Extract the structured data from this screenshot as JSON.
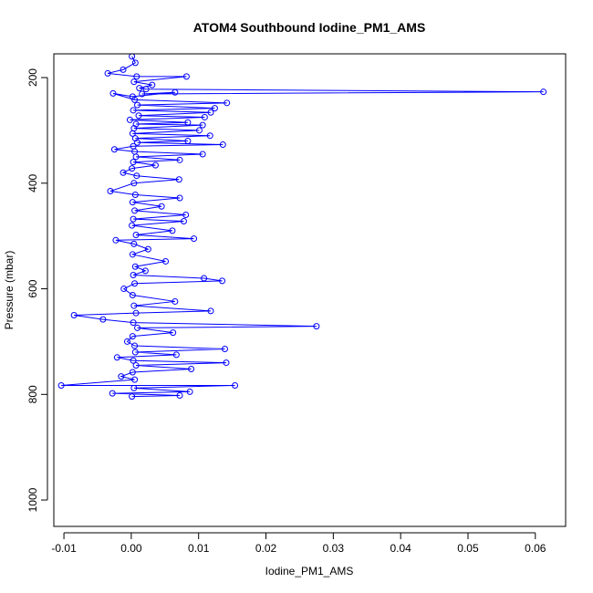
{
  "chart_data": {
    "type": "line",
    "title": "ATOM4 Southbound Iodine_PM1_AMS",
    "xlabel": "Iodine_PM1_AMS",
    "ylabel": "Pressure (mbar)",
    "xlim": [
      -0.0115,
      0.0645
    ],
    "ylim": [
      1050,
      155
    ],
    "y_reversed": true,
    "xticks": [
      -0.01,
      0.0,
      0.01,
      0.02,
      0.03,
      0.04,
      0.05,
      0.06
    ],
    "xtick_labels": [
      "-0.01",
      "0.00",
      "0.01",
      "0.02",
      "0.03",
      "0.04",
      "0.05",
      "0.06"
    ],
    "yticks": [
      200,
      400,
      600,
      800,
      1000
    ],
    "ytick_labels": [
      "200",
      "400",
      "600",
      "800",
      "1000"
    ],
    "grid": false,
    "legend": "none",
    "marker": "open-circle",
    "series_color": "#0000ff",
    "series": [
      {
        "values": [
          {
            "x": 0.0001,
            "y": 160
          },
          {
            "x": 0.0006,
            "y": 172
          },
          {
            "x": -0.0012,
            "y": 185
          },
          {
            "x": -0.0035,
            "y": 192
          },
          {
            "x": 0.0008,
            "y": 198
          },
          {
            "x": 0.0082,
            "y": 198
          },
          {
            "x": 0.0004,
            "y": 208
          },
          {
            "x": 0.0031,
            "y": 214
          },
          {
            "x": 0.0012,
            "y": 220
          },
          {
            "x": 0.0022,
            "y": 222
          },
          {
            "x": 0.0612,
            "y": 227
          },
          {
            "x": 0.0016,
            "y": 231
          },
          {
            "x": 0.0065,
            "y": 228
          },
          {
            "x": 0.0002,
            "y": 236
          },
          {
            "x": -0.0027,
            "y": 230
          },
          {
            "x": 0.0005,
            "y": 242
          },
          {
            "x": 0.0142,
            "y": 248
          },
          {
            "x": 0.0009,
            "y": 252
          },
          {
            "x": 0.0124,
            "y": 258
          },
          {
            "x": 0.0003,
            "y": 262
          },
          {
            "x": 0.0118,
            "y": 266
          },
          {
            "x": 0.0011,
            "y": 272
          },
          {
            "x": 0.0109,
            "y": 275
          },
          {
            "x": -0.0002,
            "y": 280
          },
          {
            "x": 0.0084,
            "y": 285
          },
          {
            "x": 0.0007,
            "y": 288
          },
          {
            "x": 0.0106,
            "y": 290
          },
          {
            "x": 0.0004,
            "y": 296
          },
          {
            "x": 0.0101,
            "y": 300
          },
          {
            "x": 0.0002,
            "y": 306
          },
          {
            "x": 0.0117,
            "y": 310
          },
          {
            "x": 0.0006,
            "y": 315
          },
          {
            "x": 0.0084,
            "y": 320
          },
          {
            "x": 0.0009,
            "y": 323
          },
          {
            "x": 0.0136,
            "y": 327
          },
          {
            "x": 0.0003,
            "y": 330
          },
          {
            "x": -0.0025,
            "y": 336
          },
          {
            "x": 0.0005,
            "y": 340
          },
          {
            "x": 0.0106,
            "y": 345
          },
          {
            "x": 0.0007,
            "y": 350
          },
          {
            "x": 0.0072,
            "y": 356
          },
          {
            "x": 0.0003,
            "y": 360
          },
          {
            "x": 0.0036,
            "y": 366
          },
          {
            "x": 0.0001,
            "y": 372
          },
          {
            "x": -0.0012,
            "y": 380
          },
          {
            "x": 0.0008,
            "y": 386
          },
          {
            "x": 0.0071,
            "y": 393
          },
          {
            "x": 0.0004,
            "y": 400
          },
          {
            "x": -0.0031,
            "y": 415
          },
          {
            "x": 0.0006,
            "y": 422
          },
          {
            "x": 0.0072,
            "y": 428
          },
          {
            "x": 0.0002,
            "y": 436
          },
          {
            "x": 0.0045,
            "y": 444
          },
          {
            "x": 0.0005,
            "y": 452
          },
          {
            "x": 0.0081,
            "y": 460
          },
          {
            "x": 0.0003,
            "y": 468
          },
          {
            "x": 0.0078,
            "y": 472
          },
          {
            "x": 0.0001,
            "y": 480
          },
          {
            "x": 0.0061,
            "y": 490
          },
          {
            "x": 0.0007,
            "y": 498
          },
          {
            "x": 0.0093,
            "y": 505
          },
          {
            "x": -0.0023,
            "y": 508
          },
          {
            "x": 0.0004,
            "y": 515
          },
          {
            "x": 0.0025,
            "y": 525
          },
          {
            "x": 0.0002,
            "y": 535
          },
          {
            "x": 0.0051,
            "y": 548
          },
          {
            "x": 0.0006,
            "y": 558
          },
          {
            "x": 0.0021,
            "y": 566
          },
          {
            "x": 0.0003,
            "y": 574
          },
          {
            "x": 0.0108,
            "y": 580
          },
          {
            "x": 0.0135,
            "y": 585
          },
          {
            "x": 0.0005,
            "y": 590
          },
          {
            "x": -0.0011,
            "y": 600
          },
          {
            "x": 0.0002,
            "y": 612
          },
          {
            "x": 0.0065,
            "y": 624
          },
          {
            "x": 0.0004,
            "y": 632
          },
          {
            "x": 0.0118,
            "y": 642
          },
          {
            "x": 0.0007,
            "y": 646
          },
          {
            "x": -0.0085,
            "y": 650
          },
          {
            "x": -0.0042,
            "y": 658
          },
          {
            "x": 0.0003,
            "y": 664
          },
          {
            "x": 0.0275,
            "y": 671
          },
          {
            "x": 0.0009,
            "y": 674
          },
          {
            "x": 0.0062,
            "y": 683
          },
          {
            "x": 0.0002,
            "y": 690
          },
          {
            "x": -0.0006,
            "y": 700
          },
          {
            "x": 0.0005,
            "y": 708
          },
          {
            "x": 0.0139,
            "y": 714
          },
          {
            "x": 0.0006,
            "y": 720
          },
          {
            "x": 0.0067,
            "y": 725
          },
          {
            "x": -0.0021,
            "y": 730
          },
          {
            "x": 0.0003,
            "y": 736
          },
          {
            "x": 0.0141,
            "y": 740
          },
          {
            "x": 0.0007,
            "y": 745
          },
          {
            "x": 0.0089,
            "y": 752
          },
          {
            "x": 0.0002,
            "y": 758
          },
          {
            "x": -0.0015,
            "y": 766
          },
          {
            "x": 0.0005,
            "y": 772
          },
          {
            "x": -0.0104,
            "y": 783
          },
          {
            "x": 0.0154,
            "y": 783
          },
          {
            "x": 0.0004,
            "y": 788
          },
          {
            "x": 0.0087,
            "y": 795
          },
          {
            "x": -0.0028,
            "y": 798
          },
          {
            "x": 0.0072,
            "y": 802
          },
          {
            "x": 0.0001,
            "y": 804
          }
        ]
      }
    ]
  }
}
